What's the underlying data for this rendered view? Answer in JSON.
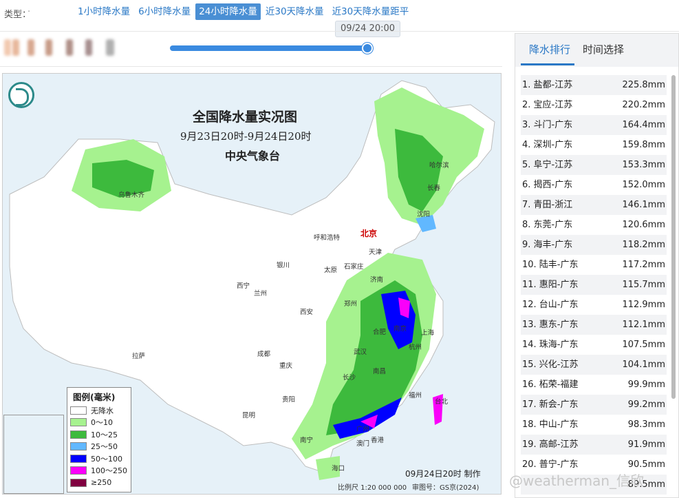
{
  "type_label": "类型：",
  "tabs": [
    {
      "label": "1小时降水量"
    },
    {
      "label": "6小时降水量"
    },
    {
      "label": "24小时降水量"
    },
    {
      "label": "近30天降水量"
    },
    {
      "label": "近30天降水量距平"
    }
  ],
  "active_tab": 2,
  "time_tip": "09/24 20:00",
  "slider_progress": 1.0,
  "map": {
    "title": "全国降水量实况图",
    "subtitle": "9月23日20时-9月24日20时",
    "org": "中央气象台",
    "made_time": "09月24日20时 制作",
    "scale": "比例尺 1:20 000 000",
    "review_no": "审图号：GS京(2024)",
    "cities": {
      "beijing": "北京",
      "harbin": "哈尔滨",
      "changchun": "长春",
      "shenyang": "沈阳",
      "tianjin": "天津",
      "huhehaote": "呼和浩特",
      "shijiazhuang": "石家庄",
      "taiyuan": "太原",
      "jinan": "济南",
      "yinchuan": "银川",
      "xining": "西宁",
      "lanzhou": "兰州",
      "xian": "西安",
      "zhengzhou": "郑州",
      "hefei": "合肥",
      "nanjing": "南京",
      "shanghai": "上海",
      "hangzhou": "杭州",
      "wuhan": "武汉",
      "changsha": "长沙",
      "nanchang": "南昌",
      "fuzhou": "福州",
      "taipei": "台北",
      "chengdu": "成都",
      "chongqing": "重庆",
      "guiyang": "贵阳",
      "kunming": "昆明",
      "nanning": "南宁",
      "guangzhou": "广州",
      "hongkong": "香港",
      "macao": "澳门",
      "haikou": "海口",
      "lasa": "拉萨",
      "wulumuqi": "乌鲁木齐"
    },
    "legend": {
      "title": "图例(毫米)",
      "items": [
        {
          "label": "无降水",
          "color": "#ffffff"
        },
        {
          "label": "0～10",
          "color": "#a6f28f"
        },
        {
          "label": "10～25",
          "color": "#3dba3d"
        },
        {
          "label": "25～50",
          "color": "#61b8ff"
        },
        {
          "label": "50～100",
          "color": "#0000ff"
        },
        {
          "label": "100～250",
          "color": "#fa00fa"
        },
        {
          "label": "≥250",
          "color": "#800040"
        }
      ]
    }
  },
  "watermark": "@weatherman_信欣",
  "side_panel": {
    "tabs": [
      {
        "label": "降水排行"
      },
      {
        "label": "时间选择"
      }
    ],
    "ranking": [
      {
        "name": "1. 盐都-江苏",
        "value": "225.8mm"
      },
      {
        "name": "2. 宝应-江苏",
        "value": "220.2mm"
      },
      {
        "name": "3. 斗门-广东",
        "value": "164.4mm"
      },
      {
        "name": "4. 深圳-广东",
        "value": "159.8mm"
      },
      {
        "name": "5. 阜宁-江苏",
        "value": "153.3mm"
      },
      {
        "name": "6. 揭西-广东",
        "value": "152.0mm"
      },
      {
        "name": "7. 青田-浙江",
        "value": "146.1mm"
      },
      {
        "name": "8. 东莞-广东",
        "value": "120.6mm"
      },
      {
        "name": "9. 海丰-广东",
        "value": "118.2mm"
      },
      {
        "name": "10. 陆丰-广东",
        "value": "117.2mm"
      },
      {
        "name": "11. 惠阳-广东",
        "value": "115.7mm"
      },
      {
        "name": "12. 台山-广东",
        "value": "112.9mm"
      },
      {
        "name": "13. 惠东-广东",
        "value": "112.1mm"
      },
      {
        "name": "14. 珠海-广东",
        "value": "107.5mm"
      },
      {
        "name": "15. 兴化-江苏",
        "value": "104.1mm"
      },
      {
        "name": "16. 柘荣-福建",
        "value": "99.9mm"
      },
      {
        "name": "17. 新会-广东",
        "value": "99.2mm"
      },
      {
        "name": "18. 中山-广东",
        "value": "98.3mm"
      },
      {
        "name": "19. 高邮-江苏",
        "value": "91.9mm"
      },
      {
        "name": "20. 普宁-广东",
        "value": "90.5mm"
      },
      {
        "name": "",
        "value": "89.5mm"
      }
    ]
  }
}
